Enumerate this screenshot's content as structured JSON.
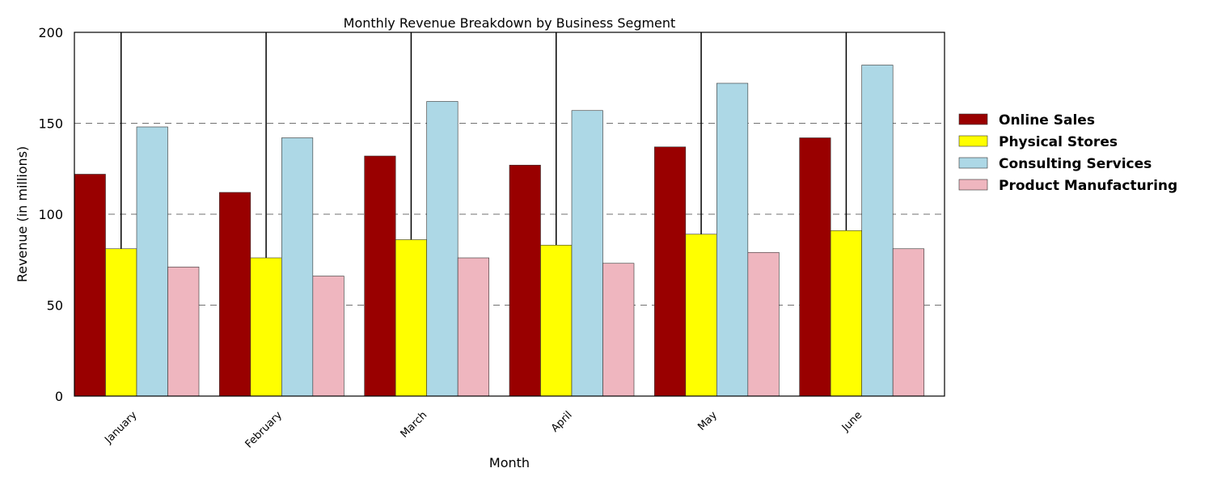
{
  "chart_data": {
    "type": "bar",
    "title": "Monthly Revenue Breakdown by Business Segment",
    "xlabel": "Month",
    "ylabel": "Revenue (in millions)",
    "categories": [
      "January",
      "February",
      "March",
      "April",
      "May",
      "June"
    ],
    "ylim": [
      0,
      200
    ],
    "yticks": [
      "0",
      "50",
      "100",
      "150",
      "200"
    ],
    "grid": "horizontal dashed",
    "legend_position": "right",
    "series": [
      {
        "name": "Online Sales",
        "color": "#990000",
        "values": [
          122,
          112,
          132,
          127,
          137,
          142
        ]
      },
      {
        "name": "Physical Stores",
        "color": "#ffff00",
        "values": [
          81,
          76,
          86,
          83,
          89,
          91
        ]
      },
      {
        "name": "Consulting Services",
        "color": "#add8e6",
        "values": [
          148,
          142,
          162,
          157,
          172,
          182
        ]
      },
      {
        "name": "Product Manufacturing",
        "color": "#efb6bf",
        "values": [
          71,
          66,
          76,
          73,
          79,
          81
        ]
      }
    ]
  }
}
